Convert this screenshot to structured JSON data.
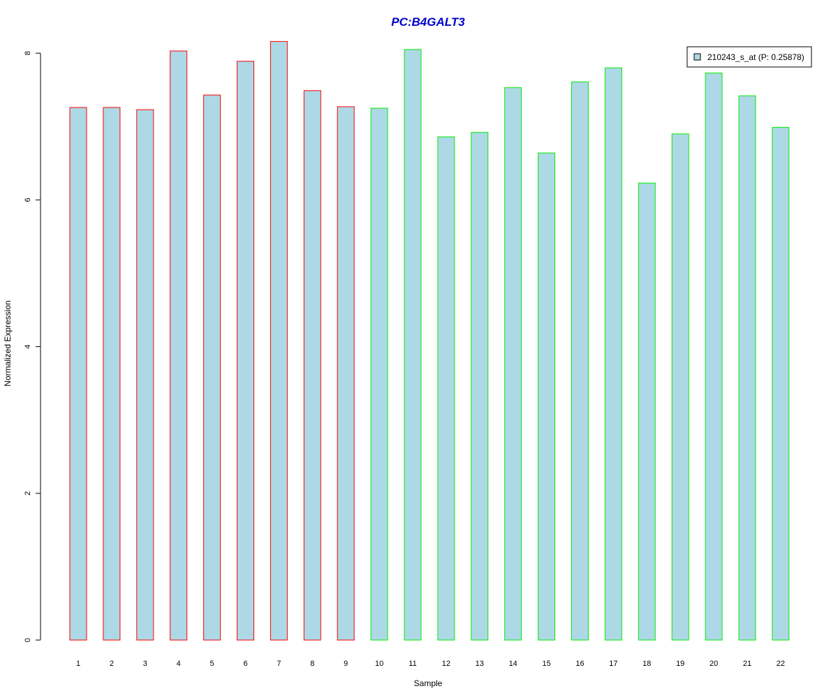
{
  "chart_data": {
    "type": "bar",
    "title": "PC:B4GALT3",
    "xlabel": "Sample",
    "ylabel": "Normalized Expression",
    "categories": [
      "1",
      "2",
      "3",
      "4",
      "5",
      "6",
      "7",
      "8",
      "9",
      "10",
      "11",
      "12",
      "13",
      "14",
      "15",
      "16",
      "17",
      "18",
      "19",
      "20",
      "21",
      "22"
    ],
    "series": [
      {
        "name": "210243_s_at (P: 0.25878)",
        "values": [
          7.26,
          7.26,
          7.23,
          8.03,
          7.43,
          7.89,
          8.16,
          7.49,
          7.27,
          7.25,
          8.05,
          6.86,
          6.92,
          7.53,
          6.64,
          7.61,
          7.8,
          6.23,
          6.9,
          7.73,
          7.42,
          6.99
        ]
      }
    ],
    "group_colors": [
      "#ff0000",
      "#ff0000",
      "#ff0000",
      "#ff0000",
      "#ff0000",
      "#ff0000",
      "#ff0000",
      "#ff0000",
      "#ff0000",
      "#00ee00",
      "#00ee00",
      "#00ee00",
      "#00ee00",
      "#00ee00",
      "#00ee00",
      "#00ee00",
      "#00ee00",
      "#00ee00",
      "#00ee00",
      "#00ee00",
      "#00ee00",
      "#00ee00"
    ],
    "bar_fill": "#add8e6",
    "title_color": "#0000cc",
    "y_ticks": [
      0,
      2,
      4,
      6,
      8
    ],
    "ylim": [
      0,
      8.3
    ],
    "grid": false,
    "legend_position": "top-right"
  }
}
